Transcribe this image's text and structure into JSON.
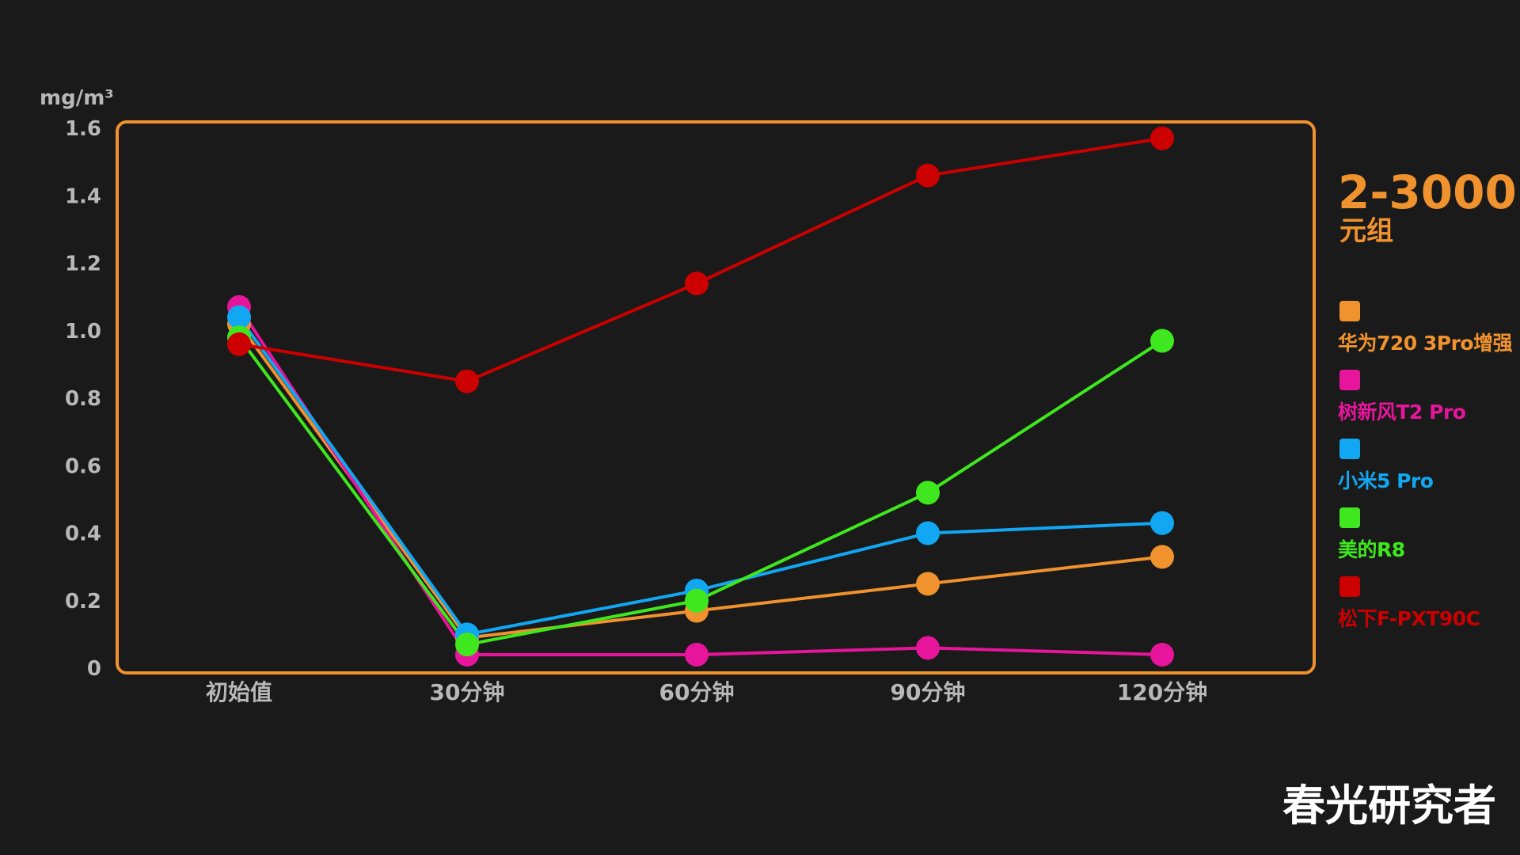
{
  "unit_label": "mg/m³",
  "group": {
    "title": "2-3000",
    "subtitle": "元组"
  },
  "watermark": "春光研究者",
  "chart_data": {
    "type": "line",
    "categories": [
      "初始值",
      "30分钟",
      "60分钟",
      "90分钟",
      "120分钟"
    ],
    "ylim": [
      0,
      1.6
    ],
    "yticks": [
      "0",
      "0.2",
      "0.4",
      "0.6",
      "0.8",
      "1.0",
      "1.2",
      "1.4",
      "1.6"
    ],
    "ylabel": "mg/m³",
    "grid": false,
    "legend_position": "right",
    "frame_color": "#f0922e",
    "series": [
      {
        "name": "华为720 3Pro增强",
        "color": "#f0922e",
        "values": [
          1.02,
          0.09,
          0.17,
          0.25,
          0.33
        ]
      },
      {
        "name": "树新风T2 Pro",
        "color": "#e6159b",
        "values": [
          1.07,
          0.04,
          0.04,
          0.06,
          0.04
        ]
      },
      {
        "name": "小米5 Pro",
        "color": "#12a7f2",
        "values": [
          1.04,
          0.1,
          0.23,
          0.4,
          0.43
        ]
      },
      {
        "name": "美的R8",
        "color": "#3fe81e",
        "values": [
          0.98,
          0.07,
          0.2,
          0.52,
          0.97
        ]
      },
      {
        "name": "松下F-PXT90C",
        "color": "#cc0000",
        "values": [
          0.96,
          0.85,
          1.14,
          1.46,
          1.57
        ]
      }
    ]
  }
}
